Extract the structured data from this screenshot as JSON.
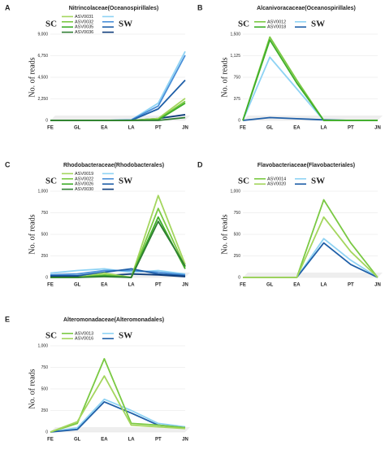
{
  "chart_data": [
    {
      "type": "line",
      "panel": "A",
      "title": "Nitrincolaceae(Oceanospirillales)",
      "ylabel": "No. of reads",
      "categories": [
        "FE",
        "GL",
        "EA",
        "LA",
        "PT",
        "JN"
      ],
      "ylim": [
        0,
        9000
      ],
      "yticks": [
        0,
        {
          "value": 2250,
          "label": "2,250"
        },
        {
          "value": 4500,
          "label": "4,500"
        },
        {
          "value": 6750,
          "label": "6,750"
        },
        {
          "value": 9000,
          "label": "9,000"
        }
      ],
      "legend_groups": [
        "SC",
        "SW"
      ],
      "series": [
        {
          "name": "ASV0031",
          "sc_color": "#a4d65e",
          "sw_color": "#8fd3f4",
          "sc_values": [
            0,
            0,
            0,
            0,
            200,
            2300
          ],
          "sw_values": [
            0,
            0,
            0,
            50,
            1800,
            7200
          ]
        },
        {
          "name": "ASV0032",
          "sc_color": "#7ac943",
          "sw_color": "#4a90d9",
          "sc_values": [
            0,
            0,
            0,
            0,
            100,
            2000
          ],
          "sw_values": [
            0,
            0,
            0,
            50,
            1500,
            6800
          ]
        },
        {
          "name": "ASV0035",
          "sc_color": "#3fae2a",
          "sw_color": "#1f5fa8",
          "sc_values": [
            0,
            0,
            0,
            0,
            50,
            1800
          ],
          "sw_values": [
            0,
            0,
            0,
            0,
            1200,
            4200
          ]
        },
        {
          "name": "ASV0036",
          "sc_color": "#2e7d32",
          "sw_color": "#0d3b7a",
          "sc_values": [
            0,
            0,
            0,
            0,
            0,
            300
          ],
          "sw_values": [
            0,
            0,
            0,
            0,
            200,
            600
          ]
        }
      ]
    },
    {
      "type": "line",
      "panel": "B",
      "title": "Alcanivoracaceae(Oceanospirillales)",
      "ylabel": "No. of reads",
      "categories": [
        "FE",
        "GL",
        "EA",
        "LA",
        "PT",
        "JN"
      ],
      "ylim": [
        0,
        1500
      ],
      "yticks": [
        0,
        375,
        750,
        {
          "value": 1125,
          "label": "1,125"
        },
        {
          "value": 1500,
          "label": "1,500"
        }
      ],
      "legend_groups": [
        "SC",
        "SW"
      ],
      "series": [
        {
          "name": "ASV0012",
          "sc_color": "#7ac943",
          "sw_color": "#8fd3f4",
          "sc_values": [
            0,
            1450,
            700,
            0,
            0,
            0
          ],
          "sw_values": [
            0,
            1100,
            550,
            0,
            0,
            0
          ]
        },
        {
          "name": "ASV0018",
          "sc_color": "#3fae2a",
          "sw_color": "#1f5fa8",
          "sc_values": [
            0,
            1400,
            650,
            0,
            0,
            0
          ],
          "sw_values": [
            0,
            50,
            30,
            10,
            0,
            0
          ]
        }
      ]
    },
    {
      "type": "line",
      "panel": "C",
      "title": "Rhodobacteraceae(Rhodobacterales)",
      "ylabel": "No. of reads",
      "categories": [
        "FE",
        "GL",
        "EA",
        "LA",
        "PT",
        "JN"
      ],
      "ylim": [
        0,
        1000
      ],
      "yticks": [
        0,
        250,
        500,
        750,
        {
          "value": 1000,
          "label": "1,000"
        }
      ],
      "legend_groups": [
        "SC",
        "SW"
      ],
      "series": [
        {
          "name": "ASV0019",
          "sc_color": "#a4d65e",
          "sw_color": "#8fd3f4",
          "sc_values": [
            0,
            0,
            50,
            0,
            950,
            150
          ],
          "sw_values": [
            50,
            80,
            100,
            60,
            80,
            40
          ]
        },
        {
          "name": "ASV0022",
          "sc_color": "#7ac943",
          "sw_color": "#4a90d9",
          "sc_values": [
            0,
            0,
            30,
            0,
            800,
            120
          ],
          "sw_values": [
            30,
            40,
            80,
            80,
            60,
            30
          ]
        },
        {
          "name": "ASV0026",
          "sc_color": "#3fae2a",
          "sw_color": "#1f5fa8",
          "sc_values": [
            0,
            0,
            20,
            0,
            700,
            100
          ],
          "sw_values": [
            20,
            20,
            60,
            100,
            40,
            20
          ]
        },
        {
          "name": "ASV0030",
          "sc_color": "#2e7d32",
          "sw_color": "#0d3b7a",
          "sc_values": [
            0,
            0,
            10,
            0,
            650,
            130
          ],
          "sw_values": [
            10,
            10,
            20,
            40,
            30,
            10
          ]
        }
      ]
    },
    {
      "type": "line",
      "panel": "D",
      "title": "Flavobacteriaceae(Flavobacteriales)",
      "ylabel": "No. of reads",
      "categories": [
        "FE",
        "GL",
        "EA",
        "LA",
        "PT",
        "JN"
      ],
      "ylim": [
        0,
        1000
      ],
      "yticks": [
        0,
        250,
        500,
        750,
        {
          "value": 1000,
          "label": "1,000"
        }
      ],
      "legend_groups": [
        "SC",
        "SW"
      ],
      "series": [
        {
          "name": "ASV0014",
          "sc_color": "#7ac943",
          "sw_color": "#8fd3f4",
          "sc_values": [
            0,
            0,
            0,
            900,
            400,
            0
          ],
          "sw_values": [
            0,
            0,
            0,
            450,
            200,
            0
          ]
        },
        {
          "name": "ASV0020",
          "sc_color": "#a4d65e",
          "sw_color": "#1f5fa8",
          "sc_values": [
            0,
            0,
            0,
            700,
            300,
            0
          ],
          "sw_values": [
            0,
            0,
            0,
            400,
            150,
            0
          ]
        }
      ]
    },
    {
      "type": "line",
      "panel": "E",
      "title": "Alteromonadaceae(Alteromonadales)",
      "ylabel": "No. of reads",
      "categories": [
        "FE",
        "GL",
        "EA",
        "LA",
        "PT",
        "JN"
      ],
      "ylim": [
        0,
        1000
      ],
      "yticks": [
        0,
        250,
        500,
        750,
        {
          "value": 1000,
          "label": "1,000"
        }
      ],
      "legend_groups": [
        "SC",
        "SW"
      ],
      "series": [
        {
          "name": "ASV0013",
          "sc_color": "#7ac943",
          "sw_color": "#8fd3f4",
          "sc_values": [
            0,
            100,
            850,
            100,
            80,
            50
          ],
          "sw_values": [
            0,
            50,
            380,
            250,
            100,
            60
          ]
        },
        {
          "name": "ASV0016",
          "sc_color": "#a4d65e",
          "sw_color": "#1f5fa8",
          "sc_values": [
            0,
            120,
            650,
            80,
            60,
            40
          ],
          "sw_values": [
            0,
            30,
            350,
            220,
            80,
            50
          ]
        }
      ]
    }
  ]
}
